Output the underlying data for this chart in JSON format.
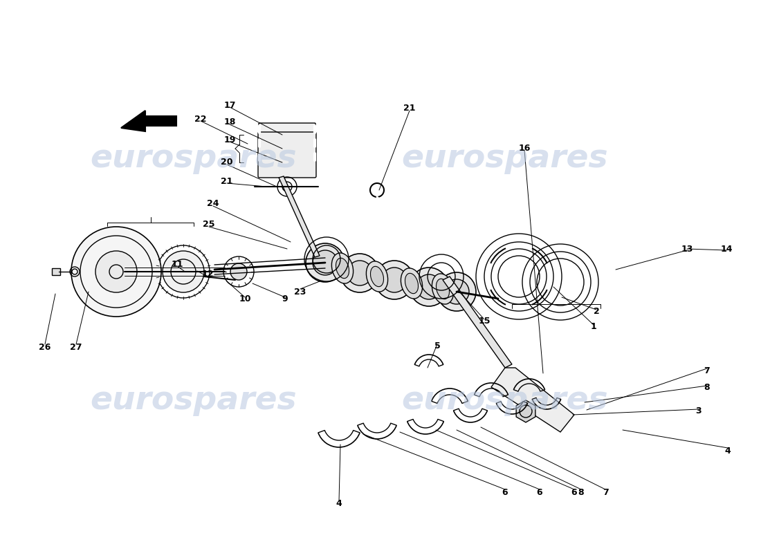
{
  "bg_color": "#ffffff",
  "line_color": "#000000",
  "watermark_color": "#c8d4e8",
  "annotations": [
    [
      "1",
      857,
      472,
      800,
      455
    ],
    [
      "2",
      862,
      450,
      810,
      440
    ],
    [
      "3",
      1010,
      207,
      820,
      230
    ],
    [
      "4",
      1052,
      152,
      840,
      175
    ],
    [
      "5",
      632,
      302,
      615,
      270
    ],
    [
      "6",
      730,
      92,
      520,
      170
    ],
    [
      "6",
      780,
      92,
      575,
      175
    ],
    [
      "6",
      830,
      92,
      630,
      178
    ],
    [
      "7",
      1022,
      267,
      845,
      210
    ],
    [
      "7",
      875,
      92,
      695,
      180
    ],
    [
      "8",
      1022,
      242,
      840,
      222
    ],
    [
      "8",
      840,
      92,
      660,
      178
    ],
    [
      "9",
      412,
      372,
      380,
      380
    ],
    [
      "10",
      354,
      372,
      340,
      382
    ],
    [
      "11",
      258,
      412,
      270,
      405
    ],
    [
      "12",
      300,
      397,
      288,
      405
    ],
    [
      "13",
      992,
      362,
      920,
      375
    ],
    [
      "14",
      1048,
      362,
      992,
      365
    ],
    [
      "15",
      700,
      463,
      700,
      435
    ],
    [
      "16",
      757,
      585,
      780,
      240
    ],
    [
      "17",
      332,
      643,
      405,
      605
    ],
    [
      "18",
      332,
      618,
      405,
      585
    ],
    [
      "19",
      332,
      595,
      405,
      565
    ],
    [
      "20",
      328,
      562,
      398,
      535
    ],
    [
      "21",
      328,
      535,
      385,
      527
    ],
    [
      "21",
      592,
      638,
      545,
      530
    ],
    [
      "22",
      290,
      623,
      355,
      595
    ],
    [
      "23",
      432,
      380,
      465,
      393
    ],
    [
      "24",
      308,
      500,
      420,
      450
    ],
    [
      "25",
      302,
      470,
      415,
      455
    ],
    [
      "26",
      65,
      302,
      80,
      340
    ],
    [
      "27",
      110,
      302,
      128,
      345
    ]
  ]
}
